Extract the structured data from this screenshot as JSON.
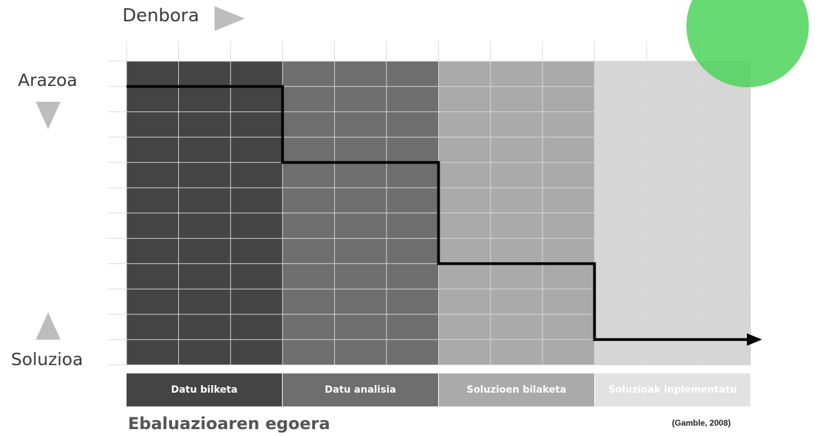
{
  "axes": {
    "time_label": "Denbora",
    "problem_label": "Arazoa",
    "solution_label": "Soluzioa"
  },
  "phases": [
    {
      "label": "Datu bilketa",
      "color": "#444444",
      "bar_color": "#444444"
    },
    {
      "label": "Datu analisia",
      "color": "#6e6e6e",
      "bar_color": "#6e6e6e"
    },
    {
      "label": "Soluzioen bilaketa",
      "color": "#aaaaaa",
      "bar_color": "#aaaaaa"
    },
    {
      "label": "Soluzioak inplementatu",
      "color": "#d6d6d6",
      "bar_color": "#e2e2e2"
    }
  ],
  "step_levels": [
    1,
    4,
    8,
    11
  ],
  "footer": {
    "title": "Ebaluazioaren egoera",
    "citation": "(Gamble, 2008)"
  },
  "colors": {
    "accent_circle": "#4cd35a",
    "arrow_gray": "#bdbdbd",
    "step_line": "#000000"
  }
}
